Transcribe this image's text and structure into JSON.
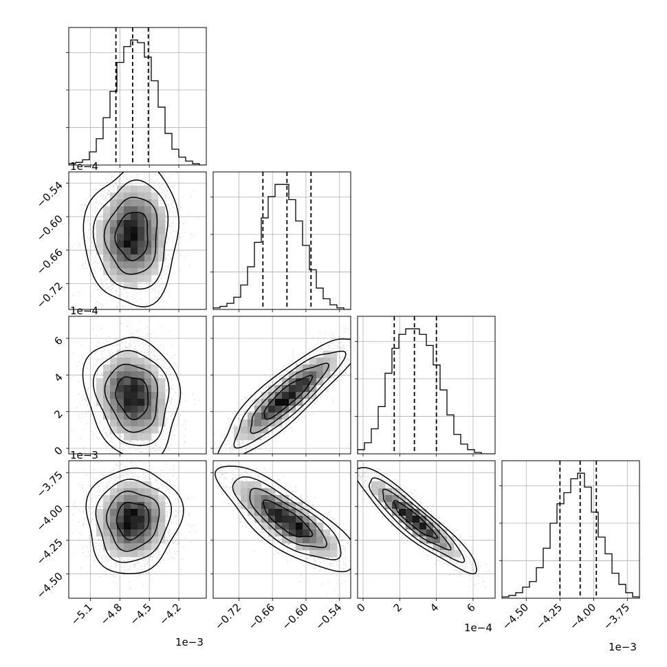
{
  "chart_data": {
    "type": "corner",
    "n_params": 4,
    "params": [
      {
        "range": [
          -5.32,
          -3.92
        ],
        "ticks": [
          -5.1,
          -4.8,
          -4.5,
          -4.2
        ],
        "tick_labels": [
          "−5.1",
          "−4.8",
          "−4.5",
          "−4.2"
        ],
        "offset": "1e−3",
        "quantiles": [
          -4.84,
          -4.67,
          -4.51
        ]
      },
      {
        "range": [
          -0.766,
          -0.52
        ],
        "ticks": [
          -0.72,
          -0.66,
          -0.6,
          -0.54
        ],
        "tick_labels": [
          "−0.72",
          "−0.66",
          "−0.60",
          "−0.54"
        ],
        "offset": "1e−4",
        "quantiles": [
          -0.677,
          -0.634,
          -0.591
        ]
      },
      {
        "range": [
          -0.3,
          7.2
        ],
        "ticks": [
          0,
          2,
          4,
          6
        ],
        "tick_labels": [
          "0",
          "2",
          "4",
          "6"
        ],
        "offset": "1e−4",
        "quantiles": [
          1.7,
          2.8,
          4.0
        ]
      },
      {
        "range": [
          -4.68,
          -3.66
        ],
        "ticks": [
          -4.5,
          -4.25,
          -4.0,
          -3.75
        ],
        "tick_labels": [
          "−4.50",
          "−4.25",
          "−4.00",
          "−3.75"
        ],
        "offset": "1e−3",
        "quantiles": [
          -4.25,
          -4.1,
          -3.98
        ]
      }
    ],
    "histograms": [
      [
        1,
        2,
        4,
        10,
        20,
        36,
        56,
        78,
        90,
        95,
        93,
        82,
        64,
        44,
        24,
        12,
        6,
        3,
        1,
        0
      ],
      [
        1,
        2,
        4,
        8,
        16,
        28,
        44,
        60,
        74,
        82,
        82,
        72,
        58,
        42,
        26,
        14,
        7,
        3,
        1,
        0
      ],
      [
        3,
        8,
        18,
        34,
        58,
        76,
        86,
        90,
        90,
        86,
        78,
        64,
        46,
        28,
        14,
        7,
        3,
        1,
        0,
        0
      ],
      [
        1,
        2,
        4,
        8,
        12,
        22,
        36,
        54,
        68,
        76,
        86,
        90,
        80,
        62,
        44,
        32,
        18,
        10,
        4,
        1
      ]
    ],
    "correlations": [
      [
        1.0,
        0.05,
        -0.15,
        0.05
      ],
      [
        0.05,
        1.0,
        0.88,
        -0.8
      ],
      [
        -0.15,
        0.88,
        1.0,
        -0.92
      ],
      [
        0.05,
        -0.8,
        -0.92,
        1.0
      ]
    ],
    "show_grid": true,
    "quantile_lines": "dashed"
  }
}
